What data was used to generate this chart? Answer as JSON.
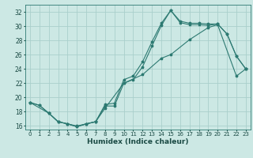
{
  "xlabel": "Humidex (Indice chaleur)",
  "background_color": "#cce8e4",
  "grid_color": "#aacfcc",
  "line_color": "#2d7a72",
  "xlim": [
    -0.5,
    23.5
  ],
  "ylim": [
    15.5,
    33.0
  ],
  "yticks": [
    16,
    18,
    20,
    22,
    24,
    26,
    28,
    30,
    32
  ],
  "xticks": [
    0,
    1,
    2,
    3,
    4,
    5,
    6,
    7,
    8,
    9,
    10,
    11,
    12,
    13,
    14,
    15,
    16,
    17,
    18,
    19,
    20,
    21,
    22,
    23
  ],
  "line1_x": [
    0,
    1,
    2,
    3,
    4,
    5,
    6,
    7,
    8,
    9,
    10,
    11,
    12,
    13,
    14,
    15,
    16,
    17,
    18,
    19,
    20,
    21,
    22,
    23
  ],
  "line1_y": [
    19.3,
    18.9,
    17.8,
    16.6,
    16.3,
    16.0,
    16.3,
    16.6,
    19.0,
    19.2,
    22.5,
    23.0,
    25.0,
    27.8,
    30.4,
    32.2,
    30.7,
    30.4,
    30.4,
    30.3,
    30.3,
    28.9,
    25.8,
    24.0
  ],
  "line2_x": [
    0,
    1,
    2,
    3,
    4,
    5,
    6,
    7,
    8,
    9,
    10,
    11,
    12,
    13,
    14,
    15,
    16,
    17,
    18,
    19,
    20,
    21,
    22,
    23
  ],
  "line2_y": [
    19.3,
    18.9,
    17.8,
    16.6,
    16.3,
    15.9,
    16.3,
    16.6,
    18.8,
    18.8,
    22.0,
    22.5,
    24.3,
    27.2,
    30.1,
    32.2,
    30.5,
    30.2,
    30.2,
    30.1,
    30.3,
    28.9,
    25.8,
    24.0
  ],
  "line3_x": [
    0,
    2,
    3,
    4,
    5,
    6,
    7,
    8,
    10,
    12,
    14,
    15,
    17,
    19,
    20,
    22,
    23
  ],
  "line3_y": [
    19.3,
    17.8,
    16.6,
    16.3,
    15.9,
    16.3,
    16.6,
    18.5,
    22.0,
    23.2,
    25.5,
    26.0,
    28.1,
    29.8,
    30.2,
    23.0,
    24.0
  ],
  "xlabel_fontsize": 6.5,
  "tick_fontsize": 5.5,
  "linewidth": 0.8,
  "markersize": 2.5
}
